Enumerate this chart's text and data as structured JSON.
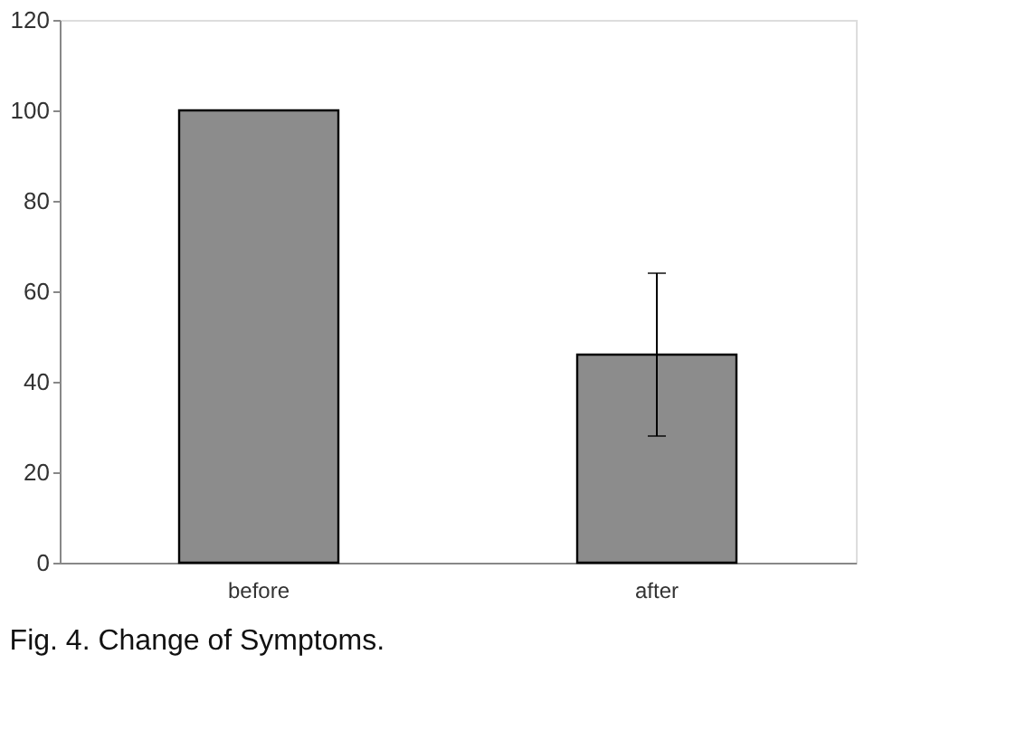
{
  "chart_data": {
    "type": "bar",
    "categories": [
      "before",
      "after"
    ],
    "values": [
      100,
      46
    ],
    "errors": [
      null,
      18
    ],
    "color": "#8c8c8c",
    "ylim": [
      0,
      120
    ],
    "yticks": [
      0,
      20,
      40,
      60,
      80,
      100,
      120
    ],
    "grid": false,
    "annotations": [
      "Fig. 4. Change of Symptoms."
    ]
  }
}
